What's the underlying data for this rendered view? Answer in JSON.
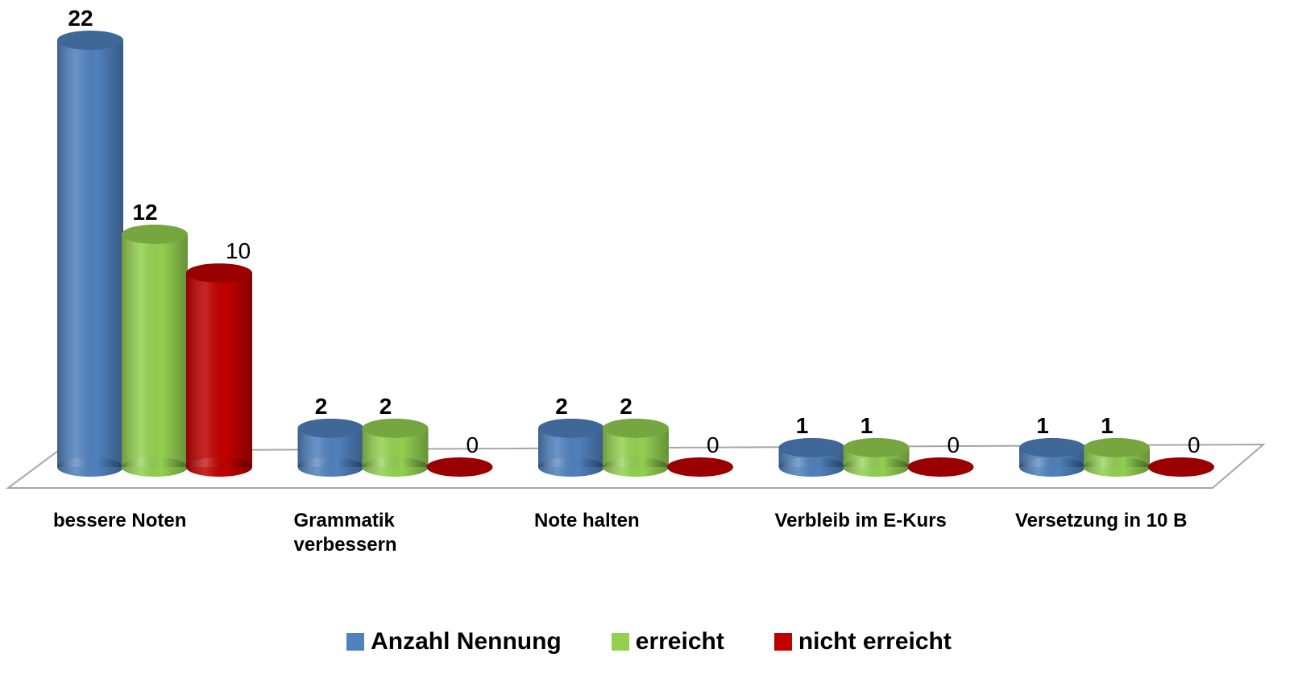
{
  "chart_data": {
    "type": "bar3d",
    "categories": [
      "bessere Noten",
      "Grammatik verbessern",
      "Note halten",
      "Verbleib im E-Kurs",
      "Versetzung in 10 B"
    ],
    "series": [
      {
        "name": "Anzahl Nennung",
        "color": "#4f81bd",
        "values": [
          22,
          2,
          2,
          1,
          1
        ]
      },
      {
        "name": "erreicht",
        "color": "#92d050",
        "values": [
          12,
          2,
          2,
          1,
          1
        ]
      },
      {
        "name": "nicht erreicht",
        "color": "#c00000",
        "values": [
          10,
          0,
          0,
          0,
          0
        ]
      }
    ],
    "legend": "bottom"
  }
}
